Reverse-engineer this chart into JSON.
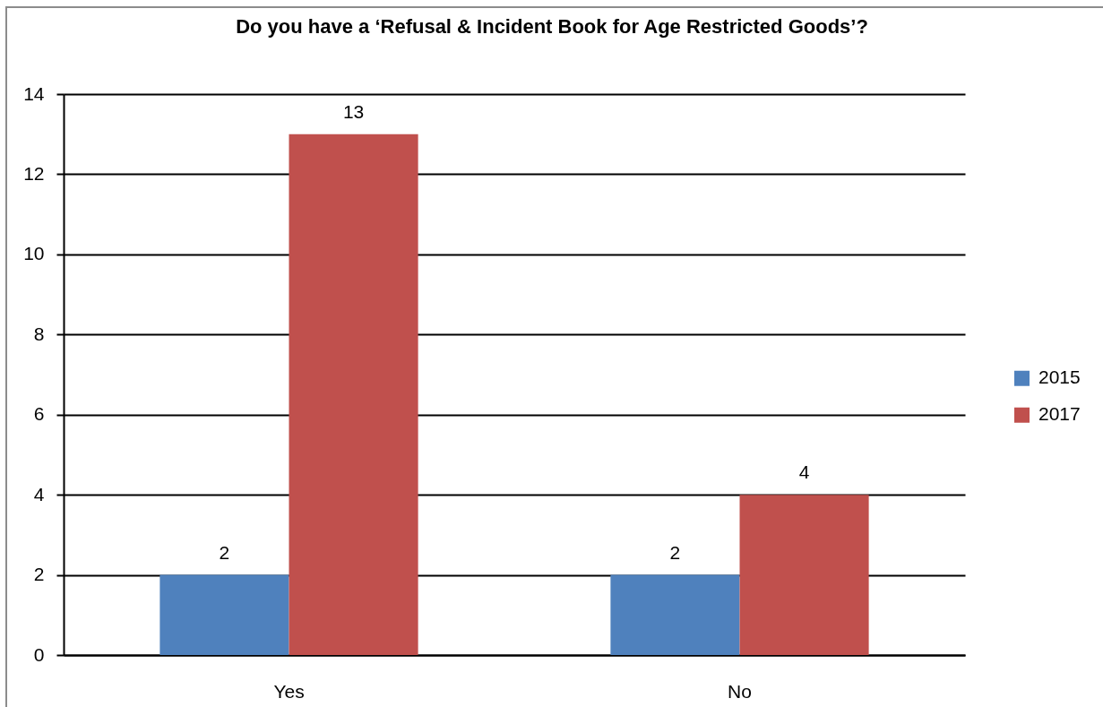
{
  "chart_data": {
    "type": "bar",
    "title": "Do you have a ‘Refusal & Incident Book for Age Restricted Goods’?",
    "categories": [
      "Yes",
      "No"
    ],
    "series": [
      {
        "name": "2015",
        "color": "#4f81bd",
        "values": [
          2,
          2
        ]
      },
      {
        "name": "2017",
        "color": "#c0504d",
        "values": [
          13,
          4
        ]
      }
    ],
    "ylim": [
      0,
      14
    ],
    "yticks": [
      0,
      2,
      4,
      6,
      8,
      10,
      12,
      14
    ],
    "grid": "y",
    "legend": "right",
    "data_labels": true
  }
}
